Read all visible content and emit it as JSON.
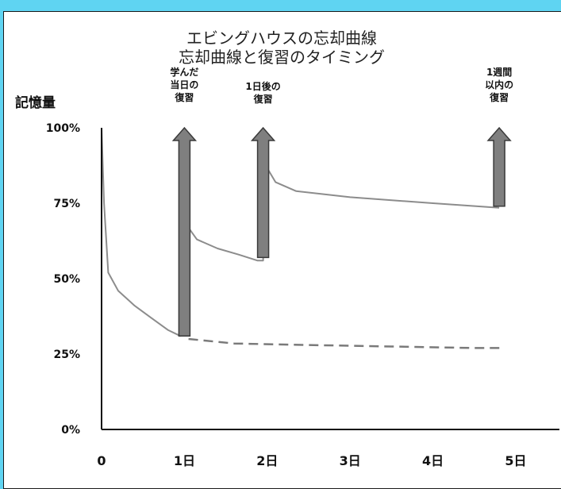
{
  "chart_data": {
    "type": "line",
    "title": [
      "エビングハウスの忘却曲線",
      "忘却曲線と復習のタイミング"
    ],
    "ylabel": "記憶量",
    "xlabel": "",
    "y_ticks": [
      "0%",
      "25%",
      "50%",
      "75%",
      "100%"
    ],
    "x_ticks": [
      "0",
      "1日",
      "2日",
      "3日",
      "4日",
      "5日"
    ],
    "xlim": [
      0,
      5
    ],
    "ylim": [
      0,
      100
    ],
    "grid": false,
    "colors": {
      "curve": "#8c8c8c",
      "dashed": "#7a7a7a",
      "arrow": "#7f7f7f",
      "axis": "#111111"
    },
    "series": [
      {
        "style": "solid",
        "points": [
          [
            0.0,
            100
          ],
          [
            0.03,
            75
          ],
          [
            0.08,
            52
          ],
          [
            0.2,
            46
          ],
          [
            0.4,
            41
          ],
          [
            0.6,
            37
          ],
          [
            0.8,
            33
          ],
          [
            0.95,
            31
          ],
          [
            1.0,
            32
          ],
          [
            1.02,
            68
          ],
          [
            1.15,
            63
          ],
          [
            1.4,
            60
          ],
          [
            1.65,
            58
          ],
          [
            1.88,
            56
          ],
          [
            1.95,
            56
          ],
          [
            1.97,
            88
          ],
          [
            2.1,
            82
          ],
          [
            2.35,
            79
          ],
          [
            3.0,
            77
          ],
          [
            4.0,
            75
          ],
          [
            4.8,
            73.5
          ]
        ]
      },
      {
        "style": "dashed",
        "points": [
          [
            1.05,
            30
          ],
          [
            1.6,
            28.5
          ],
          [
            2.5,
            28
          ],
          [
            3.5,
            27.5
          ],
          [
            4.5,
            27
          ],
          [
            4.85,
            27
          ]
        ]
      }
    ],
    "annotations": [
      {
        "x": 1.0,
        "y_from": 31,
        "y_to": 100,
        "label": [
          "学んだ",
          "当日の",
          "復習"
        ]
      },
      {
        "x": 1.95,
        "y_from": 57,
        "y_to": 100,
        "label": [
          "1日後の",
          "復習"
        ]
      },
      {
        "x": 4.8,
        "y_from": 74,
        "y_to": 100,
        "label": [
          "1週間",
          "以内の",
          "復習"
        ]
      }
    ]
  }
}
